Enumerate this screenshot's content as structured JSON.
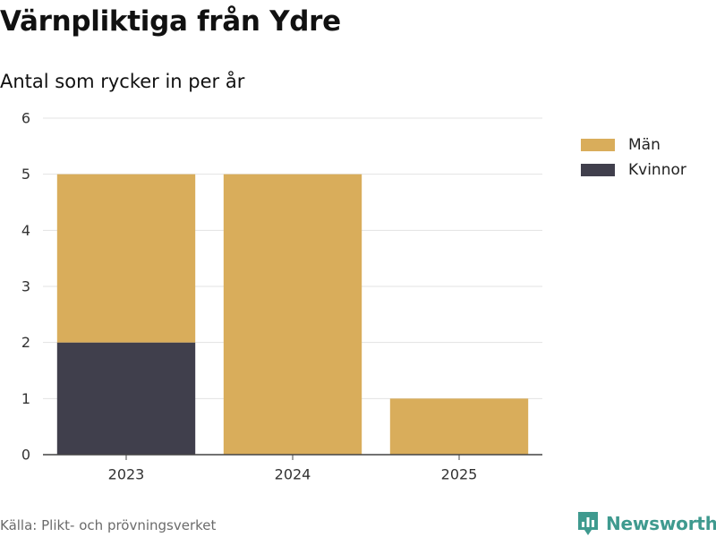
{
  "header": {
    "title": "Värnpliktiga från Ydre",
    "subtitle": "Antal som rycker in per år"
  },
  "chart_data": {
    "type": "bar",
    "stacked": true,
    "categories": [
      "2023",
      "2024",
      "2025"
    ],
    "series": [
      {
        "name": "Kvinnor",
        "values": [
          2,
          0,
          0
        ],
        "color": "#403f4c"
      },
      {
        "name": "Män",
        "values": [
          3,
          5,
          1
        ],
        "color": "#d9ad5b"
      }
    ],
    "ylim": [
      0,
      6
    ],
    "yticks": [
      0,
      1,
      2,
      3,
      4,
      5,
      6
    ],
    "grid": true,
    "legend": {
      "position": "right",
      "entries": [
        "Män",
        "Kvinnor"
      ]
    }
  },
  "footer": {
    "source": "Källa: Plikt- och prövningsverket",
    "brand": "Newsworthy"
  },
  "colors": {
    "grid": "#e3e3e3",
    "axis": "#444444",
    "brand": "#3f9a8f"
  }
}
